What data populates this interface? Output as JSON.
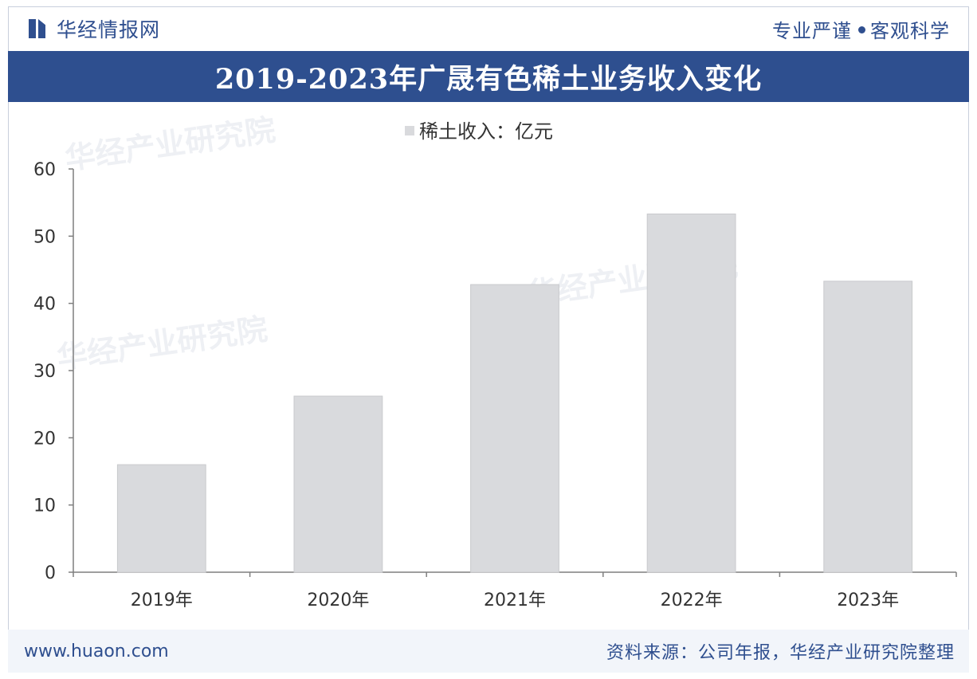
{
  "header": {
    "brand_name": "华经情报网",
    "slogan_left": "专业严谨",
    "slogan_right": "客观科学"
  },
  "title": "2019-2023年广晟有色稀土业务收入变化",
  "legend_label": "稀土收入：亿元",
  "footer": {
    "url": "www.huaon.com",
    "source": "资料来源：公司年报，华经产业研究院整理"
  },
  "watermark": "华经产业研究院",
  "colors": {
    "brand": "#2f4f8f",
    "bar": "#d9dadd",
    "axis": "#7f7f7f"
  },
  "chart_data": {
    "type": "bar",
    "categories": [
      "2019年",
      "2020年",
      "2021年",
      "2022年",
      "2023年"
    ],
    "series": [
      {
        "name": "稀土收入：亿元",
        "values": [
          16,
          26.2,
          42.8,
          53.3,
          43.3
        ]
      }
    ],
    "ylim": [
      0,
      60
    ],
    "yticks": [
      0,
      10,
      20,
      30,
      40,
      50,
      60
    ],
    "grid": false,
    "legend_position": "top-center"
  }
}
